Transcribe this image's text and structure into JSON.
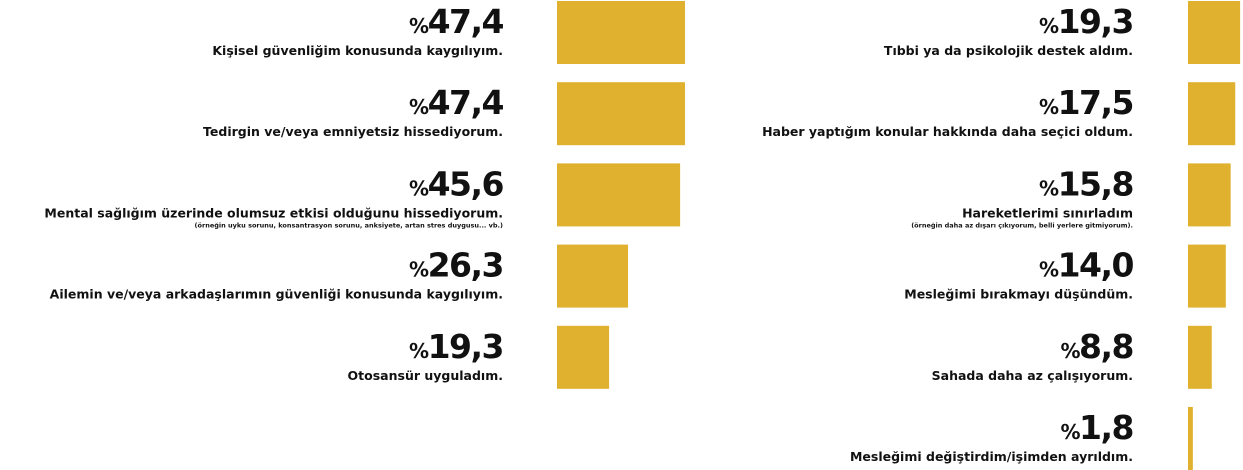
{
  "chart_data": [
    {
      "type": "bar",
      "orientation": "horizontal",
      "color": "#e0b12e",
      "xlim": [
        0,
        100
      ],
      "categories": [
        "Kişisel güvenliğim konusunda kaygılıyım.",
        "Tedirgin ve/veya emniyetsiz hissediyorum.",
        "Mental sağlığım üzerinde olumsuz etkisi olduğunu hissediyorum.",
        "Ailemin ve/veya arkadaşlarımın güvenliği konusunda kaygılıyım.",
        "Otosansür uyguladım."
      ],
      "notes": [
        null,
        null,
        "(örneğin uyku sorunu, konsantrasyon sorunu, anksiyete, artan stres duygusu... vb.)",
        null,
        null
      ],
      "values": [
        47.4,
        47.4,
        45.6,
        26.3,
        19.3
      ],
      "value_labels": [
        "%47,4",
        "%47,4",
        "%45,6",
        "%26,3",
        "%19,3"
      ]
    },
    {
      "type": "bar",
      "orientation": "horizontal",
      "color": "#e0b12e",
      "xlim": [
        0,
        100
      ],
      "categories": [
        "Tıbbi ya da psikolojik destek aldım.",
        "Haber yaptığım konular hakkında daha seçici oldum.",
        "Hareketlerimi sınırladım",
        "Mesleğimi bırakmayı düşündüm.",
        "Sahada daha az çalışıyorum.",
        "Mesleğimi değiştirdim/işimden ayrıldım."
      ],
      "notes": [
        null,
        null,
        "(örneğin daha az dışarı çıkıyorum, belli yerlere gitmiyorum).",
        null,
        null,
        null
      ],
      "values": [
        19.3,
        17.5,
        15.8,
        14.0,
        8.8,
        1.8
      ],
      "value_labels": [
        "%19,3",
        "%17,5",
        "%15,8",
        "%14,0",
        "%8,8",
        "%1,8"
      ]
    }
  ]
}
